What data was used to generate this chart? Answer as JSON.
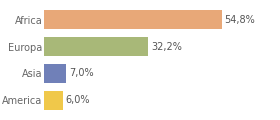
{
  "categories": [
    "America",
    "Asia",
    "Europa",
    "Africa"
  ],
  "values": [
    6.0,
    7.0,
    32.2,
    54.8
  ],
  "labels": [
    "6,0%",
    "7,0%",
    "32,2%",
    "54,8%"
  ],
  "colors": [
    "#f0c84a",
    "#7080b8",
    "#a8b878",
    "#e8a878"
  ],
  "background_color": "#ffffff",
  "label_fontsize": 7,
  "tick_fontsize": 7,
  "bar_height": 0.72,
  "xlim": 72
}
